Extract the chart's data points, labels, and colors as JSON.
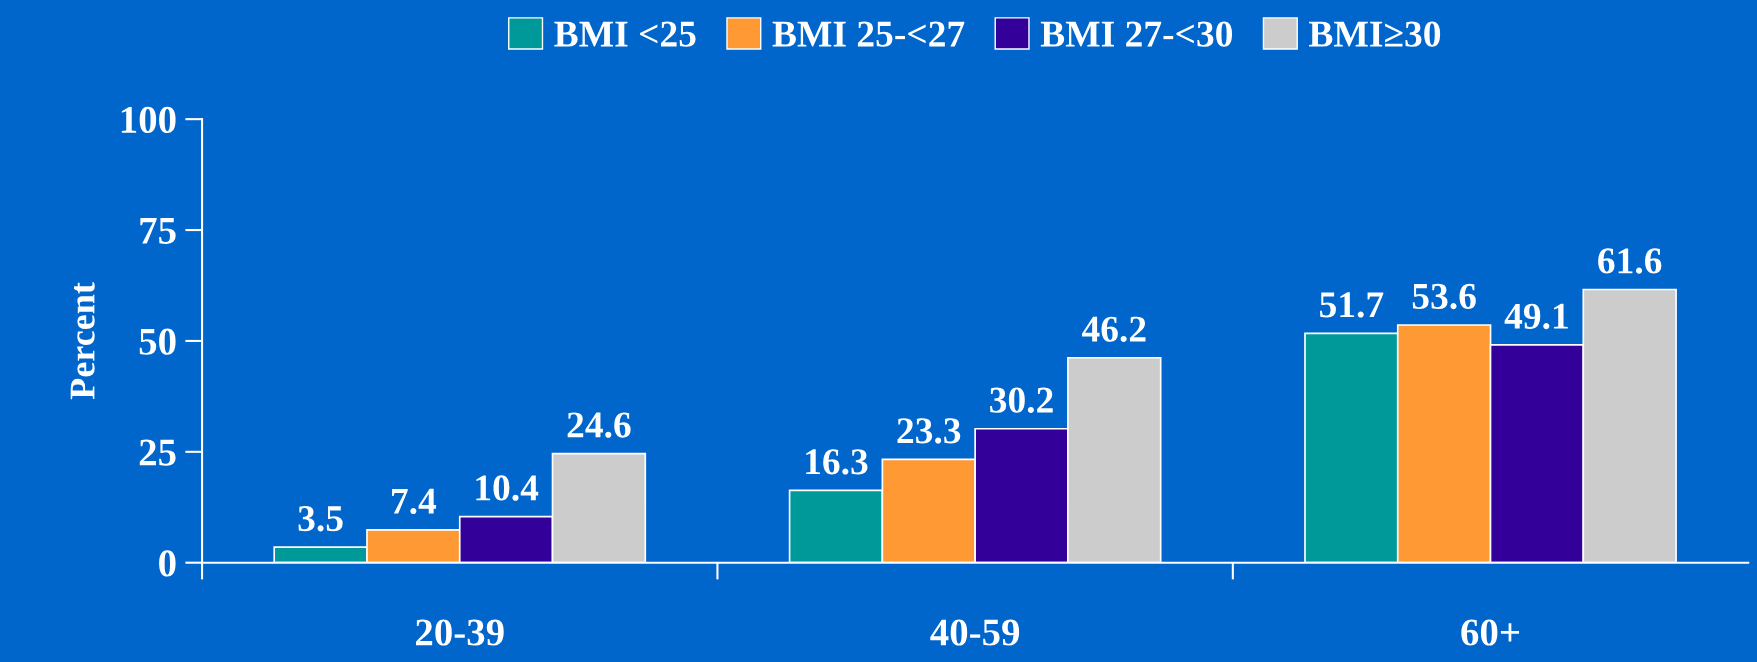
{
  "chart_data": {
    "type": "bar",
    "ylabel": "Percent",
    "categories": [
      "20-39",
      "40-59",
      "60+"
    ],
    "series": [
      {
        "name": "BMI <25",
        "color": "#009999",
        "values": [
          3.5,
          16.3,
          51.7
        ]
      },
      {
        "name": "BMI 25-<27",
        "color": "#ff9933",
        "values": [
          7.4,
          23.3,
          53.6
        ]
      },
      {
        "name": "BMI 27-<30",
        "color": "#330099",
        "values": [
          10.4,
          30.2,
          49.1
        ]
      },
      {
        "name": "BMI≥30",
        "color": "#cccccc",
        "values": [
          24.6,
          46.2,
          61.6
        ]
      }
    ],
    "ylim": [
      0,
      100
    ],
    "yticks": [
      0,
      25,
      50,
      75,
      100
    ],
    "grid": false,
    "legend": "top",
    "data_labels": true
  }
}
